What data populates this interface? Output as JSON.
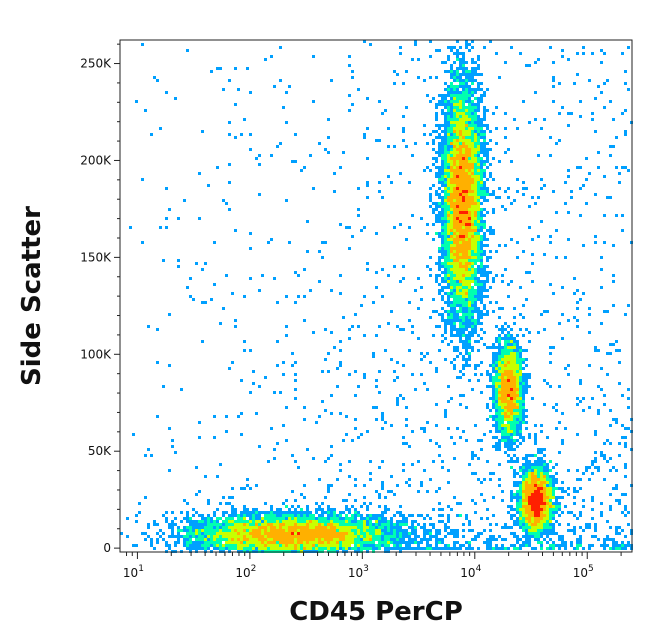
{
  "chart_data": {
    "type": "scatter",
    "subtype": "flow-cytometry-density-dot-plot",
    "title": "",
    "xlabel": "CD45 PerCP",
    "ylabel": "Side Scatter",
    "x_scale": "log",
    "y_scale": "linear",
    "xlim": [
      7,
      250000
    ],
    "ylim": [
      -2000,
      262143
    ],
    "x_ticks": [
      {
        "value": 10,
        "base": "10",
        "exp": "1"
      },
      {
        "value": 100,
        "base": "10",
        "exp": "2"
      },
      {
        "value": 1000,
        "base": "10",
        "exp": "3"
      },
      {
        "value": 10000,
        "base": "10",
        "exp": "4"
      },
      {
        "value": 100000,
        "base": "10",
        "exp": "5"
      }
    ],
    "y_ticks": [
      {
        "value": 0,
        "label": "0"
      },
      {
        "value": 50000,
        "label": "50K"
      },
      {
        "value": 100000,
        "label": "100K"
      },
      {
        "value": 150000,
        "label": "150K"
      },
      {
        "value": 200000,
        "label": "200K"
      },
      {
        "value": 250000,
        "label": "250K"
      }
    ],
    "grid": false,
    "legend": "none",
    "colormap": [
      "#0000ff",
      "#00a0ff",
      "#00ffb0",
      "#c8ff00",
      "#ffb000",
      "#ff2000"
    ],
    "populations": [
      {
        "center_x": 7800,
        "center_y": 178000,
        "spread_logx": 0.085,
        "spread_y": 29000,
        "relative_count": 1.0
      },
      {
        "center_x": 20000,
        "center_y": 82000,
        "spread_logx": 0.06,
        "spread_y": 12000,
        "relative_count": 0.28
      },
      {
        "center_x": 35000,
        "center_y": 25000,
        "spread_logx": 0.07,
        "spread_y": 8000,
        "relative_count": 0.38
      },
      {
        "center_x": 250,
        "center_y": 7000,
        "spread_logx": 0.45,
        "spread_y": 5000,
        "relative_count": 0.75
      }
    ]
  }
}
